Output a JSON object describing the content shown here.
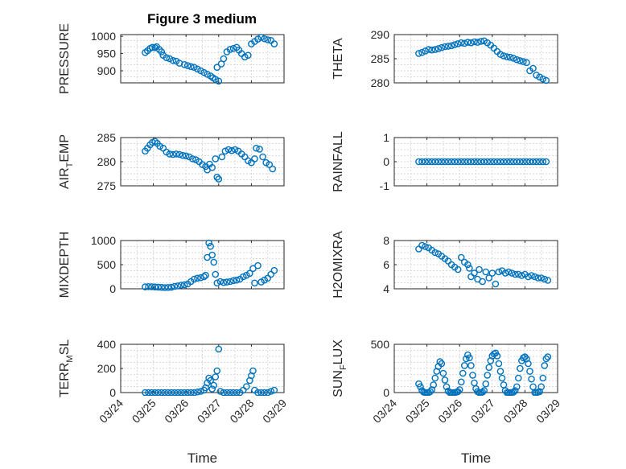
{
  "title": "Figure 3 medium",
  "chart_data": {
    "type": "scatter",
    "xlabel": "Time",
    "x_ticks": [
      "03/24",
      "03/25",
      "03/26",
      "03/27",
      "03/28",
      "03/29"
    ],
    "xlim": [
      "03/24",
      "03/29"
    ],
    "grid": true,
    "marker": "open-circle",
    "marker_color": "#0072bd",
    "panels": [
      {
        "name": "PRESSURE",
        "ylabel": "PRESSURE",
        "ylim": [
          865,
          1005
        ],
        "yticks": [
          900,
          950,
          1000
        ],
        "x": [
          24.75,
          24.82,
          24.9,
          24.97,
          25.05,
          25.1,
          25.18,
          25.25,
          25.3,
          25.4,
          25.5,
          25.6,
          25.7,
          25.8,
          25.95,
          26.05,
          26.15,
          26.25,
          26.35,
          26.45,
          26.55,
          26.65,
          26.75,
          26.82,
          26.9,
          26.95,
          27.0,
          27.08,
          27.15,
          27.25,
          27.35,
          27.45,
          27.55,
          27.62,
          27.7,
          27.8,
          27.9,
          28.0,
          28.1,
          28.2,
          28.3,
          28.4,
          28.5,
          28.6,
          28.7
        ],
        "y": [
          953,
          958,
          965,
          968,
          967,
          970,
          962,
          955,
          945,
          938,
          935,
          930,
          928,
          922,
          918,
          915,
          912,
          910,
          905,
          900,
          895,
          890,
          885,
          880,
          875,
          910,
          870,
          920,
          935,
          955,
          962,
          965,
          968,
          960,
          950,
          940,
          945,
          978,
          985,
          992,
          997,
          993,
          990,
          988,
          978
        ]
      },
      {
        "name": "THETA",
        "ylabel": "THETA",
        "ylim": [
          280,
          290
        ],
        "yticks": [
          280,
          285,
          290
        ],
        "x": [
          24.75,
          24.85,
          24.95,
          25.05,
          25.15,
          25.25,
          25.35,
          25.45,
          25.55,
          25.65,
          25.75,
          25.85,
          25.95,
          26.05,
          26.15,
          26.25,
          26.35,
          26.45,
          26.55,
          26.65,
          26.75,
          26.85,
          26.95,
          27.05,
          27.15,
          27.25,
          27.35,
          27.45,
          27.55,
          27.65,
          27.75,
          27.85,
          27.95,
          28.05,
          28.15,
          28.25,
          28.35,
          28.45,
          28.55,
          28.65
        ],
        "y": [
          286.1,
          286.3,
          286.6,
          286.9,
          286.8,
          286.9,
          287.1,
          287.3,
          287.5,
          287.6,
          287.7,
          287.9,
          288.1,
          288.3,
          288.2,
          288.4,
          288.3,
          288.5,
          288.4,
          288.6,
          288.7,
          288.3,
          287.8,
          287.2,
          286.5,
          285.9,
          285.6,
          285.4,
          285.3,
          285.1,
          284.8,
          284.6,
          284.4,
          284.2,
          282.5,
          283.0,
          281.6,
          281.2,
          280.8,
          280.5
        ]
      },
      {
        "name": "AIR_TEMP",
        "ylabel": "AIR",
        "ylabel_sub": "T",
        "ylabel_rest": "EMP",
        "ylim": [
          275,
          285
        ],
        "yticks": [
          275,
          280,
          285
        ],
        "x": [
          24.75,
          24.82,
          24.9,
          24.97,
          25.05,
          25.12,
          25.2,
          25.3,
          25.4,
          25.5,
          25.6,
          25.7,
          25.8,
          25.9,
          26.0,
          26.1,
          26.2,
          26.3,
          26.4,
          26.5,
          26.6,
          26.65,
          26.72,
          26.8,
          26.9,
          26.95,
          27.0,
          27.1,
          27.2,
          27.3,
          27.4,
          27.5,
          27.6,
          27.7,
          27.8,
          27.9,
          28.0,
          28.1,
          28.15,
          28.25,
          28.35,
          28.45,
          28.55,
          28.65
        ],
        "y": [
          282.2,
          282.8,
          283.5,
          284.0,
          284.2,
          283.8,
          283.2,
          282.8,
          282.0,
          281.6,
          281.5,
          281.6,
          281.5,
          281.3,
          281.2,
          281.0,
          280.6,
          280.4,
          280.0,
          279.4,
          279.0,
          278.3,
          279.5,
          278.8,
          280.6,
          276.8,
          276.4,
          281.0,
          282.2,
          282.5,
          282.3,
          282.5,
          282.2,
          281.6,
          281.0,
          280.2,
          279.8,
          280.6,
          282.8,
          282.6,
          281.0,
          279.8,
          279.4,
          278.5
        ]
      },
      {
        "name": "RAINFALL",
        "ylabel": "RAINFALL",
        "ylim": [
          -1,
          1
        ],
        "yticks": [
          -1,
          0,
          1
        ],
        "x": [
          24.75,
          24.85,
          24.95,
          25.05,
          25.15,
          25.25,
          25.35,
          25.45,
          25.55,
          25.65,
          25.75,
          25.85,
          25.95,
          26.05,
          26.15,
          26.25,
          26.35,
          26.45,
          26.55,
          26.65,
          26.75,
          26.85,
          26.95,
          27.05,
          27.15,
          27.25,
          27.35,
          27.45,
          27.55,
          27.65,
          27.75,
          27.85,
          27.95,
          28.05,
          28.15,
          28.25,
          28.35,
          28.45,
          28.55,
          28.65
        ],
        "y": [
          0,
          0,
          0,
          0,
          0,
          0,
          0,
          0,
          0,
          0,
          0,
          0,
          0,
          0,
          0,
          0,
          0,
          0,
          0,
          0,
          0,
          0,
          0,
          0,
          0,
          0,
          0,
          0,
          0,
          0,
          0,
          0,
          0,
          0,
          0,
          0,
          0,
          0,
          0,
          0
        ]
      },
      {
        "name": "MIXDEPTH",
        "ylabel": "MIXDEPTH",
        "ylim": [
          0,
          1000
        ],
        "yticks": [
          0,
          500,
          1000
        ],
        "x": [
          24.75,
          24.85,
          24.95,
          25.05,
          25.15,
          25.25,
          25.35,
          25.45,
          25.55,
          25.65,
          25.75,
          25.85,
          25.95,
          26.05,
          26.15,
          26.25,
          26.35,
          26.45,
          26.55,
          26.6,
          26.65,
          26.7,
          26.75,
          26.8,
          26.85,
          26.9,
          26.95,
          27.05,
          27.15,
          27.25,
          27.35,
          27.45,
          27.55,
          27.65,
          27.75,
          27.85,
          27.95,
          28.05,
          28.1,
          28.2,
          28.3,
          28.4,
          28.5,
          28.6,
          28.7
        ],
        "y": [
          40,
          45,
          42,
          38,
          35,
          30,
          25,
          28,
          32,
          50,
          60,
          75,
          85,
          100,
          150,
          200,
          220,
          230,
          250,
          280,
          650,
          950,
          880,
          700,
          550,
          300,
          120,
          150,
          130,
          140,
          150,
          170,
          180,
          200,
          250,
          280,
          320,
          420,
          120,
          480,
          140,
          180,
          220,
          300,
          380
        ]
      },
      {
        "name": "H2OMIXRA",
        "ylabel": "H2OMIXRA",
        "ylim": [
          4,
          8
        ],
        "yticks": [
          4,
          6,
          8
        ],
        "x": [
          24.75,
          24.85,
          24.95,
          25.05,
          25.15,
          25.25,
          25.35,
          25.45,
          25.55,
          25.65,
          25.75,
          25.85,
          25.95,
          26.05,
          26.15,
          26.25,
          26.3,
          26.35,
          26.45,
          26.55,
          26.6,
          26.7,
          26.8,
          26.9,
          27.0,
          27.1,
          27.2,
          27.3,
          27.4,
          27.5,
          27.6,
          27.7,
          27.8,
          27.9,
          28.0,
          28.1,
          28.2,
          28.3,
          28.4,
          28.5,
          28.6,
          28.7
        ],
        "y": [
          7.3,
          7.6,
          7.5,
          7.4,
          7.2,
          7.0,
          6.9,
          6.7,
          6.5,
          6.3,
          6.0,
          5.8,
          5.6,
          6.6,
          6.2,
          6.0,
          5.7,
          5.0,
          5.3,
          4.8,
          5.6,
          4.6,
          5.4,
          4.9,
          5.3,
          4.4,
          5.4,
          5.5,
          5.3,
          5.4,
          5.3,
          5.2,
          5.2,
          5.1,
          5.2,
          5.0,
          5.1,
          5.0,
          4.9,
          4.9,
          4.8,
          4.7
        ]
      },
      {
        "name": "TERR_MSL",
        "ylabel": "TERR",
        "ylabel_sub": "M",
        "ylabel_rest": "SL",
        "ylim": [
          0,
          400
        ],
        "yticks": [
          0,
          200,
          400
        ],
        "x": [
          24.75,
          24.85,
          24.95,
          25.05,
          25.15,
          25.25,
          25.35,
          25.45,
          25.55,
          25.65,
          25.75,
          25.85,
          25.95,
          26.05,
          26.15,
          26.25,
          26.35,
          26.45,
          26.55,
          26.6,
          26.65,
          26.7,
          26.75,
          26.8,
          26.85,
          26.9,
          26.95,
          27.0,
          27.05,
          27.15,
          27.25,
          27.35,
          27.45,
          27.55,
          27.65,
          27.75,
          27.85,
          27.95,
          28.0,
          28.05,
          28.1,
          28.2,
          28.3,
          28.4,
          28.5,
          28.6,
          28.7
        ],
        "y": [
          0,
          0,
          0,
          0,
          0,
          0,
          0,
          0,
          0,
          0,
          0,
          0,
          0,
          0,
          0,
          0,
          5,
          10,
          20,
          40,
          80,
          120,
          100,
          30,
          60,
          130,
          180,
          360,
          10,
          0,
          0,
          0,
          0,
          0,
          0,
          20,
          50,
          100,
          140,
          180,
          20,
          0,
          0,
          0,
          0,
          10,
          20
        ]
      },
      {
        "name": "SUN_FLUX",
        "ylabel": "SUN",
        "ylabel_sub": "F",
        "ylabel_rest": "LUX",
        "ylim": [
          0,
          500
        ],
        "yticks": [
          0,
          500
        ],
        "x": [
          24.75,
          24.8,
          24.85,
          24.9,
          24.95,
          25.0,
          25.05,
          25.1,
          25.15,
          25.2,
          25.25,
          25.3,
          25.35,
          25.4,
          25.45,
          25.5,
          25.55,
          25.6,
          25.65,
          25.7,
          25.75,
          25.8,
          25.85,
          25.9,
          25.95,
          26.0,
          26.05,
          26.1,
          26.15,
          26.2,
          26.25,
          26.3,
          26.35,
          26.4,
          26.45,
          26.5,
          26.55,
          26.6,
          26.65,
          26.7,
          26.75,
          26.8,
          26.85,
          26.9,
          26.95,
          27.0,
          27.05,
          27.1,
          27.15,
          27.2,
          27.25,
          27.3,
          27.35,
          27.4,
          27.45,
          27.5,
          27.55,
          27.6,
          27.65,
          27.7,
          27.75,
          27.8,
          27.85,
          27.9,
          27.95,
          28.0,
          28.05,
          28.1,
          28.15,
          28.2,
          28.25,
          28.3,
          28.35,
          28.4,
          28.45,
          28.5,
          28.55,
          28.6,
          28.65,
          28.7
        ],
        "y": [
          90,
          60,
          20,
          5,
          0,
          0,
          0,
          10,
          30,
          80,
          150,
          220,
          270,
          320,
          300,
          200,
          130,
          60,
          15,
          0,
          0,
          0,
          0,
          5,
          10,
          30,
          110,
          200,
          280,
          350,
          390,
          360,
          280,
          180,
          100,
          40,
          10,
          0,
          0,
          5,
          20,
          90,
          180,
          260,
          330,
          380,
          400,
          410,
          380,
          300,
          220,
          150,
          80,
          20,
          0,
          0,
          0,
          0,
          5,
          20,
          60,
          150,
          250,
          330,
          360,
          370,
          350,
          300,
          220,
          140,
          60,
          0,
          0,
          5,
          10,
          60,
          150,
          280,
          350,
          370
        ]
      }
    ]
  }
}
